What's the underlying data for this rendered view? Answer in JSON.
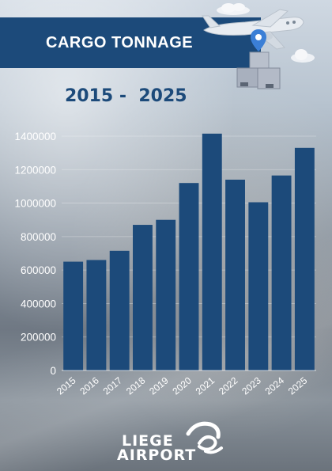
{
  "header": {
    "title": "CARGO TONNAGE",
    "years": "2015 -  2025"
  },
  "logo": {
    "line1": "LIEGE",
    "line2": "AIRPORT"
  },
  "decor": {
    "plane_icon": "airplane-icon",
    "pin_icon": "location-pin-icon",
    "box_icon": "cargo-boxes-icon",
    "cloud_icon": "cloud-icon"
  },
  "colors": {
    "accent": "#1c4a7a",
    "bar": "#1c4a7a",
    "text": "#ffffff"
  },
  "chart_data": {
    "type": "bar",
    "title": "",
    "xlabel": "",
    "ylabel": "",
    "categories": [
      "2015",
      "2016",
      "2017",
      "2018",
      "2019",
      "2020",
      "2021",
      "2022",
      "2023",
      "2024",
      "2025"
    ],
    "values": [
      650000,
      660000,
      715000,
      870000,
      900000,
      1120000,
      1415000,
      1140000,
      1005000,
      1165000,
      1330000
    ],
    "ylim": [
      0,
      1400000
    ],
    "yticks": [
      0,
      200000,
      400000,
      600000,
      800000,
      1000000,
      1200000,
      1400000
    ],
    "ytick_labels": [
      "0",
      "200000",
      "400000",
      "600000",
      "800000",
      "1000000",
      "1200000",
      "1400000"
    ],
    "grid": true,
    "legend": "none"
  }
}
